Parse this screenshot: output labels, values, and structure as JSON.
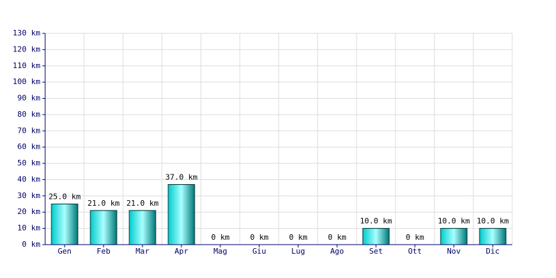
{
  "chart_data": {
    "type": "bar",
    "categories": [
      "Gen",
      "Feb",
      "Mar",
      "Apr",
      "Mag",
      "Giu",
      "Lug",
      "Ago",
      "Set",
      "Ott",
      "Nov",
      "Dic"
    ],
    "values": [
      25,
      21,
      21,
      37,
      0,
      0,
      0,
      0,
      10,
      0,
      10,
      10
    ],
    "value_labels": [
      "25.0 km",
      "21.0 km",
      "21.0 km",
      "37.0 km",
      "0 km",
      "0 km",
      "0 km",
      "0 km",
      "10.0 km",
      "0 km",
      "10.0 km",
      "10.0 km"
    ],
    "color": "#00cccc",
    "ylim": [
      0,
      130
    ],
    "yticks": [
      {
        "value": 0,
        "label": "0 km"
      },
      {
        "value": 10,
        "label": "10 km"
      },
      {
        "value": 20,
        "label": "20 km"
      },
      {
        "value": 30,
        "label": "30 km"
      },
      {
        "value": 40,
        "label": "40 km"
      },
      {
        "value": 50,
        "label": "50 km"
      },
      {
        "value": 60,
        "label": "60 km"
      },
      {
        "value": 70,
        "label": "70 km"
      },
      {
        "value": 80,
        "label": "80 km"
      },
      {
        "value": 90,
        "label": "90 km"
      },
      {
        "value": 100,
        "label": "100 km"
      },
      {
        "value": 110,
        "label": "110 km"
      },
      {
        "value": 120,
        "label": "120 km"
      },
      {
        "value": 130,
        "label": "130 km"
      }
    ],
    "grid": true
  }
}
